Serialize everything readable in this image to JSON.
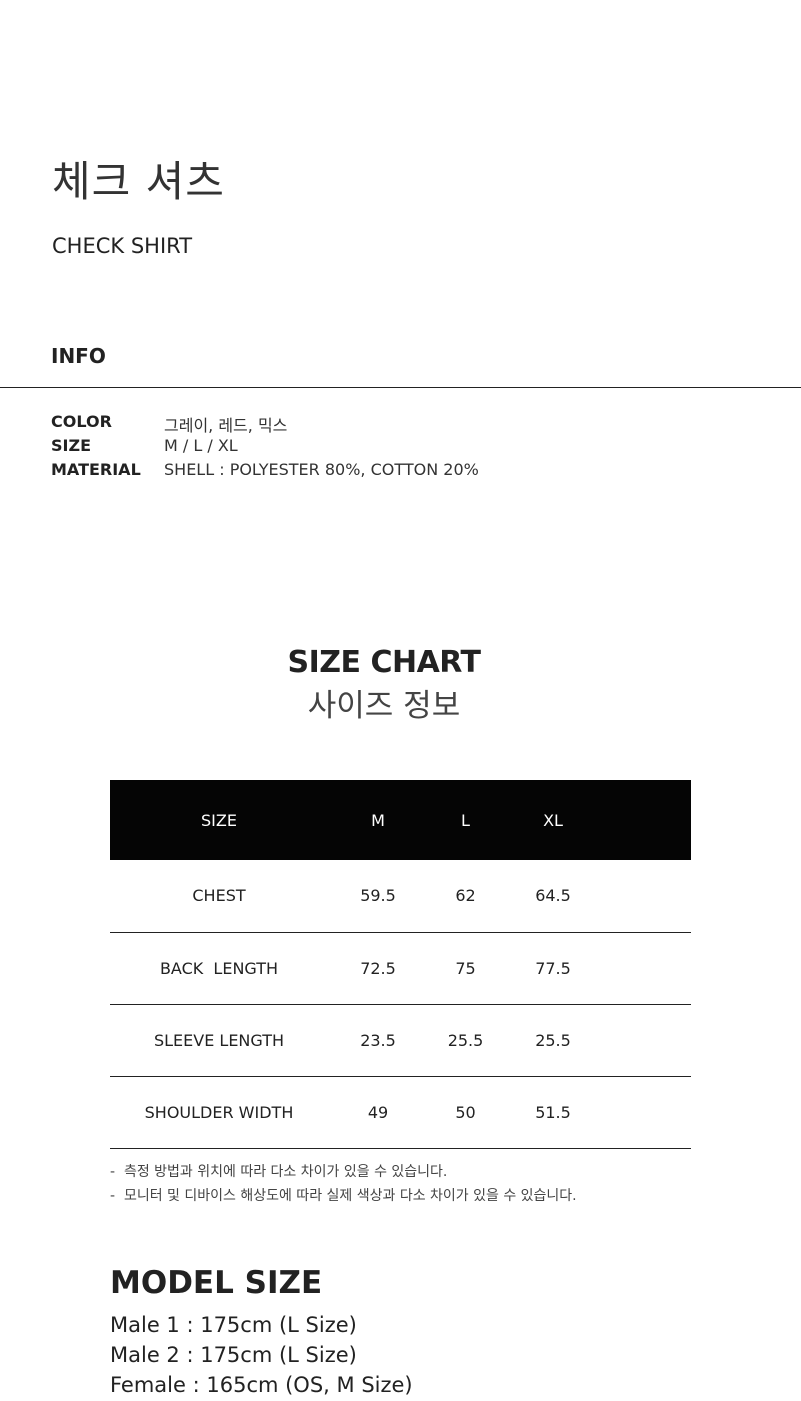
{
  "product": {
    "title_ko": "체크 셔츠",
    "title_en": "CHECK SHIRT"
  },
  "info": {
    "heading": "INFO",
    "rows": [
      {
        "label": "COLOR",
        "value": "그레이, 레드, 믹스"
      },
      {
        "label": "SIZE",
        "value": "M / L / XL"
      },
      {
        "label": "MATERIAL",
        "value": "SHELL : POLYESTER 80%, COTTON 20%"
      }
    ]
  },
  "size_chart": {
    "title_en": "SIZE CHART",
    "title_ko": "사이즈 정보",
    "headers": [
      "SIZE",
      "M",
      "L",
      "XL"
    ],
    "rows": [
      [
        "CHEST",
        "59.5",
        "62",
        "64.5"
      ],
      [
        "BACK  LENGTH",
        "72.5",
        "75",
        "77.5"
      ],
      [
        "SLEEVE LENGTH",
        "23.5",
        "25.5",
        "25.5"
      ],
      [
        "SHOULDER WIDTH",
        "49",
        "50",
        "51.5"
      ]
    ],
    "notes": [
      "-  측정 방법과 위치에 따라 다소 차이가 있을 수 있습니다.",
      "-  모니터 및 디바이스 해상도에 따라 실제 색상과 다소 차이가 있을 수 있습니다."
    ]
  },
  "model_size": {
    "heading": "MODEL SIZE",
    "lines": [
      "Male 1 : 175cm (L Size)",
      "Male 2 : 175cm (L Size)",
      "Female : 165cm (OS, M Size)"
    ]
  }
}
